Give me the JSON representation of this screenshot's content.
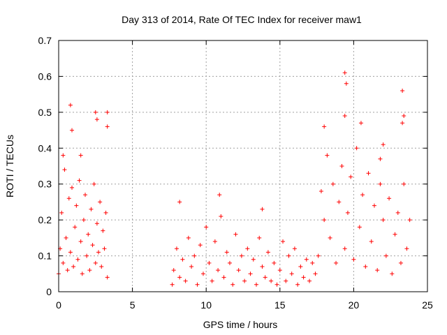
{
  "chart_data": {
    "type": "scatter",
    "title": "Day 313 of 2014, Rate Of TEC Index for receiver maw1",
    "xlabel": "GPS time / hours",
    "ylabel": "ROTI / TECUs",
    "xlim": [
      0,
      25
    ],
    "ylim": [
      0,
      0.7
    ],
    "xticks": [
      "0",
      "5",
      "10",
      "15",
      "20",
      "25"
    ],
    "yticks": [
      "0",
      "0.1",
      "0.2",
      "0.3",
      "0.4",
      "0.5",
      "0.6",
      "0.7"
    ],
    "grid": true,
    "marker": "+",
    "color": "#ff0000",
    "series": [
      {
        "x": [
          0.0,
          0.1,
          0.2,
          0.3,
          0.4,
          0.5,
          0.6,
          0.7,
          0.8,
          0.9,
          1.0,
          1.1,
          1.2,
          1.3,
          1.4,
          1.5,
          1.6,
          1.7,
          1.8,
          1.9,
          2.0,
          2.1,
          2.2,
          2.3,
          2.4,
          2.5,
          2.6,
          2.7,
          2.8,
          2.9,
          3.0,
          3.1,
          3.2,
          3.3,
          0.3,
          0.9,
          0.8,
          1.5,
          2.5,
          2.6,
          3.3,
          3.3,
          7.7,
          7.8,
          8.0,
          8.2,
          8.4,
          8.6,
          8.8,
          9.0,
          9.2,
          9.4,
          9.6,
          9.8,
          10.0,
          10.2,
          10.4,
          10.6,
          10.8,
          11.0,
          11.2,
          11.4,
          11.6,
          11.8,
          12.0,
          12.2,
          12.4,
          12.6,
          12.8,
          13.0,
          13.2,
          13.4,
          13.6,
          13.8,
          14.0,
          14.2,
          14.4,
          14.6,
          14.8,
          15.0,
          15.2,
          15.4,
          15.6,
          15.8,
          16.0,
          16.2,
          16.4,
          16.6,
          16.8,
          17.0,
          17.2,
          17.4,
          8.2,
          10.9,
          13.8,
          17.6,
          17.8,
          18.0,
          18.2,
          18.4,
          18.6,
          18.8,
          19.0,
          19.2,
          19.4,
          19.6,
          19.8,
          20.0,
          20.2,
          20.4,
          20.6,
          20.8,
          21.0,
          21.2,
          21.4,
          21.6,
          21.8,
          22.0,
          22.2,
          22.4,
          22.6,
          22.8,
          23.0,
          23.2,
          23.4,
          23.6,
          23.8,
          19.4,
          19.5,
          19.4,
          20.5,
          21.8,
          23.3,
          23.4,
          23.3,
          18.0,
          22.0
        ],
        "y": [
          0.05,
          0.12,
          0.22,
          0.08,
          0.34,
          0.15,
          0.06,
          0.26,
          0.11,
          0.29,
          0.07,
          0.18,
          0.24,
          0.09,
          0.31,
          0.14,
          0.05,
          0.2,
          0.27,
          0.1,
          0.16,
          0.06,
          0.23,
          0.13,
          0.3,
          0.08,
          0.19,
          0.11,
          0.25,
          0.07,
          0.17,
          0.12,
          0.22,
          0.04,
          0.38,
          0.45,
          0.52,
          0.38,
          0.5,
          0.48,
          0.5,
          0.46,
          0.02,
          0.06,
          0.12,
          0.04,
          0.09,
          0.03,
          0.15,
          0.07,
          0.1,
          0.02,
          0.13,
          0.05,
          0.18,
          0.08,
          0.03,
          0.14,
          0.06,
          0.21,
          0.04,
          0.11,
          0.08,
          0.02,
          0.16,
          0.06,
          0.1,
          0.03,
          0.12,
          0.05,
          0.09,
          0.02,
          0.15,
          0.07,
          0.04,
          0.11,
          0.03,
          0.08,
          0.02,
          0.06,
          0.14,
          0.03,
          0.1,
          0.05,
          0.12,
          0.02,
          0.07,
          0.04,
          0.09,
          0.03,
          0.08,
          0.05,
          0.25,
          0.27,
          0.23,
          0.1,
          0.28,
          0.2,
          0.38,
          0.15,
          0.3,
          0.08,
          0.25,
          0.35,
          0.12,
          0.22,
          0.32,
          0.09,
          0.4,
          0.18,
          0.27,
          0.07,
          0.33,
          0.14,
          0.24,
          0.06,
          0.3,
          0.2,
          0.1,
          0.26,
          0.05,
          0.16,
          0.22,
          0.08,
          0.3,
          0.12,
          0.2,
          0.61,
          0.58,
          0.49,
          0.47,
          0.37,
          0.56,
          0.49,
          0.47,
          0.46,
          0.41
        ]
      }
    ]
  }
}
